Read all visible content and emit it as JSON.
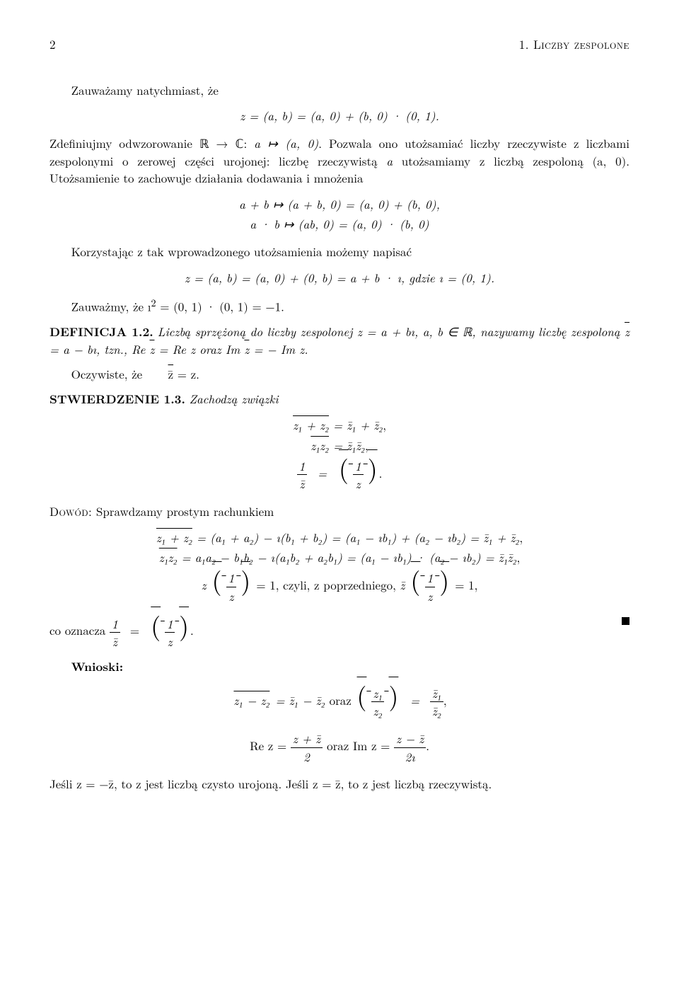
{
  "header": {
    "page_num": "2",
    "chapter": "1. Liczby zespolone"
  },
  "p1": "Zauważamy natychmiast, że",
  "eq1": "z = (a, b) = (a, 0) + (b, 0) · (0, 1).",
  "p2a": "Zdefiniujmy odwzorowanie ℝ → ℂ: ",
  "p2b": "a ↦ (a, 0)",
  "p2c": ". Pozwala ono utożsamiać liczby rzeczywiste z liczbami zespolonymi o zerowej części urojonej: liczbę rzeczywistą ",
  "p2d": "a",
  "p2e": " utożsamiamy z liczbą zespoloną (a, 0). Utożsamienie to zachowuje działania dodawania i mnożenia",
  "eq2a": "a + b ↦ (a + b, 0) = (a, 0) + (b, 0),",
  "eq2b": "a · b ↦ (ab, 0) = (a, 0) · (b, 0)",
  "p3": "Korzystając z tak wprowadzonego utożsamienia możemy napisać",
  "eq3": "z = (a, b) = (a, 0) + (0, b) = a + b · ı, gdzie ı = (0, 1).",
  "p4a": "Zauważmy, że ı",
  "p4sup": "2",
  "p4b": " = (0, 1) · (0, 1) = −1.",
  "def_label": "DEFINICJA 1.2.",
  "def_a": " Liczbą sprzężoną do liczby zespolonej z = a + bı, a, b ∈ ℝ, nazywamy liczbę zespoloną ",
  "def_b": " = a − bı, tzn., Re ",
  "def_c": " = Re z oraz Im ",
  "def_d": " = − Im z.",
  "p5a": "Oczywiste, że ",
  "p5b": " = z.",
  "stw_label": "STWIERDZENIE 1.3.",
  "stw_text": " Zachodzą związki",
  "dowod": "Dowód:",
  "dowod_text": " Sprawdzamy prostym rachunkiem",
  "line_sum": " = (a₁ + a₂) − ı(b₁ + b₂) = (a₁ − ıb₁) + (a₂ − ıb₂) = ",
  "line_prod": " = a₁a₂ − b₁b₂ − ı(a₁b₂ + a₂b₁) = (a₁ − ıb₁) · (a₂ − ıb₂) = ",
  "line_inv_mid": " = 1,  czyli, z poprzedniego, ",
  "line_inv_end": " = 1,",
  "co_oznacza": "co oznacza ",
  "wnioski": "Wnioski:",
  "oraz": "   oraz   ",
  "rez": "Re z = ",
  "imz": "Im z = ",
  "final": "Jeśli z = −z̄, to z jest liczbą czysto urojoną. Jeśli z = z̄, to z jest liczbą rzeczywistą.",
  "sym": {
    "z": "z",
    "zbar": "z̄",
    "zdbar": "z̄̄",
    "z1": "z₁",
    "z2": "z₂",
    "z1b": "z̄₁",
    "z2b": "z̄₂",
    "z1pz2": "z₁ + z₂",
    "z1z2": "z₁z₂",
    "one": "1",
    "two": "2",
    "twoi": "2ı",
    "zpzb": "z + z̄",
    "zmzb": "z − z̄",
    "comma": ",",
    "dot": "."
  }
}
